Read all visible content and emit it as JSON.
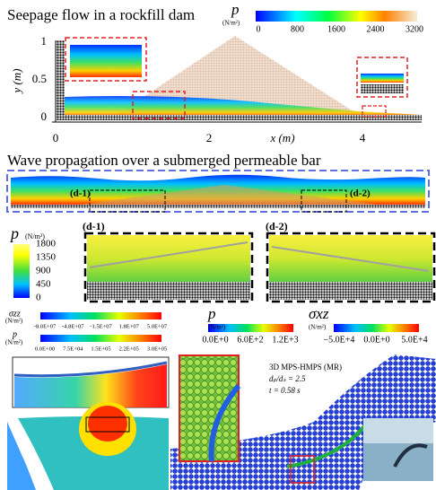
{
  "seepage": {
    "title": "Seepage flow in a rockfill dam",
    "colorbar": {
      "label": "p",
      "unit": "(N/m²)",
      "ticks": [
        "0",
        "800",
        "1600",
        "2400",
        "3200"
      ]
    },
    "x_axis": {
      "label": "x (m)",
      "ticks": [
        "0",
        "2",
        "4"
      ]
    },
    "y_axis": {
      "label": "y (m)",
      "ticks": [
        "1",
        "0.5",
        "0"
      ]
    }
  },
  "wave": {
    "title": "Wave propagation over a submerged permeable bar",
    "insets": [
      "(d-1)",
      "(d-2)"
    ],
    "colorbar": {
      "label": "p",
      "unit": "(N/m²)",
      "ticks": [
        "1800",
        "1350",
        "900",
        "450",
        "0"
      ]
    }
  },
  "stress": {
    "colorbars": [
      {
        "label": "σzz",
        "unit": "(N/m²)",
        "ticks": [
          "-8.0E+07",
          "-4.8E+07",
          "-1.5E+07",
          "1.8E+07",
          "5.0E+07"
        ]
      },
      {
        "label": "p",
        "unit": "(N/m²)",
        "ticks": [
          "0.0E+00",
          "7.5E+04",
          "1.5E+05",
          "2.2E+05",
          "3.0E+05"
        ]
      }
    ]
  },
  "mps3d": {
    "colorbars": [
      {
        "label": "p",
        "unit": "(N/m²)",
        "ticks": [
          "0.0E+0",
          "6.0E+2",
          "1.2E+3"
        ]
      },
      {
        "label": "σxz",
        "unit": "(N/m²)",
        "ticks": [
          "−5.0E+4",
          "0.0E+0",
          "5.0E+4"
        ]
      }
    ],
    "annotations": [
      "3D MPS-HMPS (MR)",
      "dₚ/dₛ = 2.5",
      "t = 0.58 s"
    ]
  }
}
